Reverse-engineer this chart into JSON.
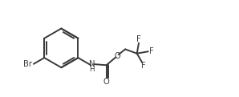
{
  "bg_color": "#ffffff",
  "line_color": "#3a3a3a",
  "text_color": "#3a3a3a",
  "bond_lw": 1.4,
  "font_size": 7.2,
  "fig_width": 2.98,
  "fig_height": 1.21,
  "dpi": 100,
  "xlim": [
    0,
    10
  ],
  "ylim": [
    0,
    3.4
  ]
}
